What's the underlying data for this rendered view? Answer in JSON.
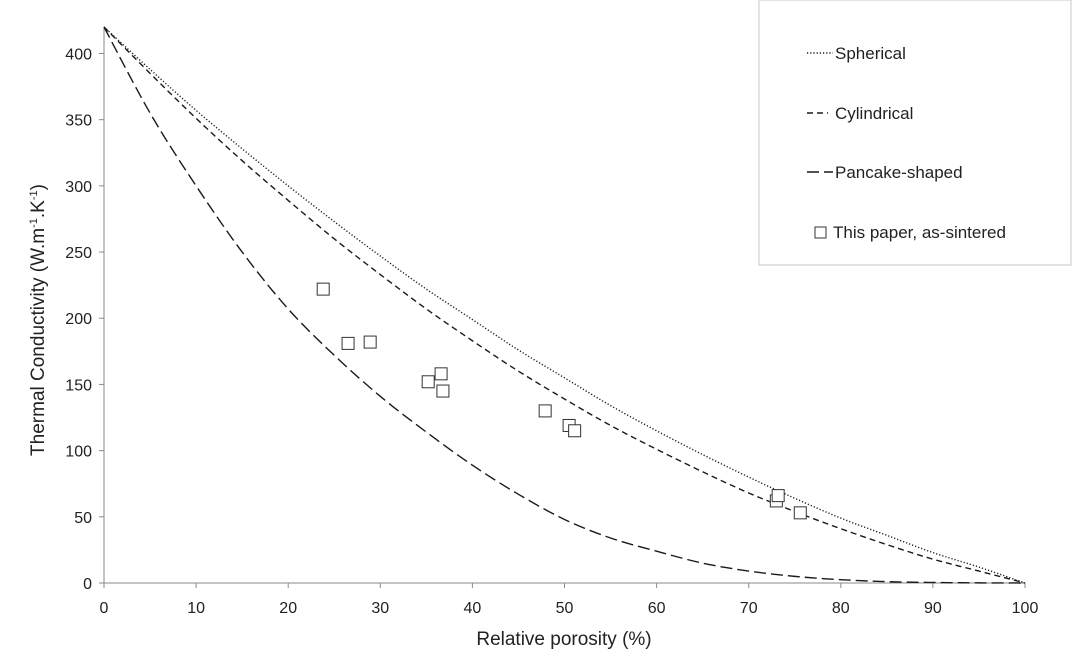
{
  "chart_data": {
    "type": "line",
    "xlabel": "Relative porosity (%)",
    "ylabel": {
      "part1": "Thermal Conductivity  (W.m",
      "sup1": "-1",
      "part2": ".K",
      "sup2": "-1",
      "part3": ")"
    },
    "xlim": [
      0,
      100
    ],
    "ylim": [
      0,
      420
    ],
    "xticks": [
      0,
      10,
      20,
      30,
      40,
      50,
      60,
      70,
      80,
      90,
      100
    ],
    "yticks": [
      0,
      50,
      100,
      150,
      200,
      250,
      300,
      350,
      400
    ],
    "grid": false,
    "legend_position": "top-right",
    "series": [
      {
        "name": "Spherical",
        "style": "dotted",
        "color": "#1a1a1a",
        "x": [
          0,
          5,
          10,
          15,
          20,
          25,
          30,
          35,
          40,
          45,
          50,
          55,
          60,
          65,
          70,
          75,
          80,
          85,
          90,
          95,
          100
        ],
        "y": [
          420,
          388,
          357,
          328,
          300,
          273,
          247,
          222,
          199,
          176,
          155,
          134,
          115,
          97,
          80,
          64,
          49,
          36,
          23,
          12,
          0
        ]
      },
      {
        "name": "Cylindrical",
        "style": "dashed",
        "color": "#1a1a1a",
        "x": [
          0,
          5,
          10,
          15,
          20,
          25,
          30,
          35,
          40,
          45,
          50,
          55,
          60,
          65,
          70,
          75,
          80,
          85,
          90,
          95,
          100
        ],
        "y": [
          420,
          385,
          351,
          319,
          289,
          260,
          233,
          207,
          183,
          160,
          139,
          119,
          101,
          84,
          68,
          54,
          41,
          29,
          18,
          9,
          0
        ]
      },
      {
        "name": "Pancake-shaped",
        "style": "long-dash",
        "color": "#1a1a1a",
        "x": [
          0,
          5,
          10,
          15,
          20,
          25,
          30,
          35,
          40,
          45,
          50,
          55,
          60,
          65,
          70,
          75,
          80,
          85,
          90,
          95,
          100
        ],
        "y": [
          420,
          355,
          300,
          250,
          207,
          172,
          141,
          114,
          89,
          67,
          48,
          34,
          24,
          15,
          9,
          5,
          2.5,
          1,
          0.4,
          0.1,
          0
        ]
      }
    ],
    "points": {
      "name": "This paper, as-sintered",
      "marker": "square",
      "x": [
        23.8,
        26.5,
        28.9,
        35.2,
        36.6,
        36.8,
        47.9,
        50.5,
        51.1,
        73.0,
        73.2,
        75.6
      ],
      "y": [
        222,
        181,
        182,
        152,
        158,
        145,
        130,
        119,
        115,
        62,
        66,
        53
      ]
    },
    "legend": [
      "Spherical",
      "Cylindrical",
      "Pancake-shaped",
      "This paper, as-sintered"
    ]
  }
}
